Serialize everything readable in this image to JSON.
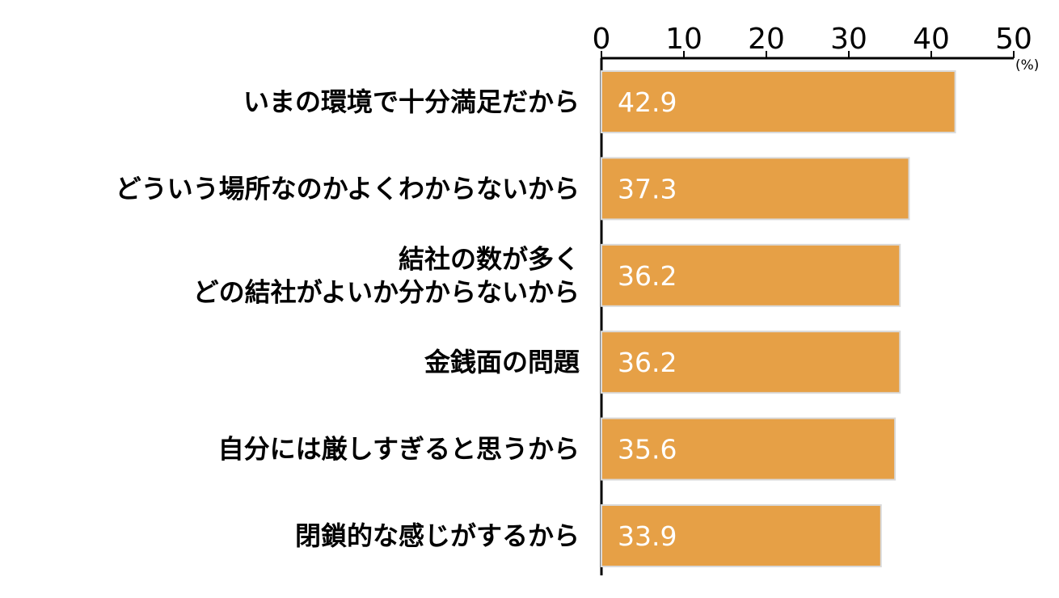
{
  "chart_data": {
    "type": "bar",
    "orientation": "horizontal",
    "categories": [
      [
        "いまの環境で十分満足だから"
      ],
      [
        "どういう場所なのかよくわからないから"
      ],
      [
        "結社の数が多く",
        "どの結社がよいか分からないから"
      ],
      [
        "金銭面の問題"
      ],
      [
        "自分には厳しすぎると思うから"
      ],
      [
        "閉鎖的な感じがするから"
      ]
    ],
    "values": [
      42.9,
      37.3,
      36.2,
      36.2,
      35.6,
      33.9
    ],
    "value_labels": [
      "42.9",
      "37.3",
      "36.2",
      "36.2",
      "35.6",
      "33.9"
    ],
    "xlim": [
      0,
      50
    ],
    "ticks": [
      0,
      10,
      20,
      30,
      40,
      50
    ],
    "tick_labels": [
      "0",
      "10",
      "20",
      "30",
      "40",
      "50"
    ],
    "unit_label": "(%)",
    "axis_position": "top",
    "grid": false,
    "bar_color": "#E6A046",
    "bar_border_color": "#d9d9d9"
  }
}
